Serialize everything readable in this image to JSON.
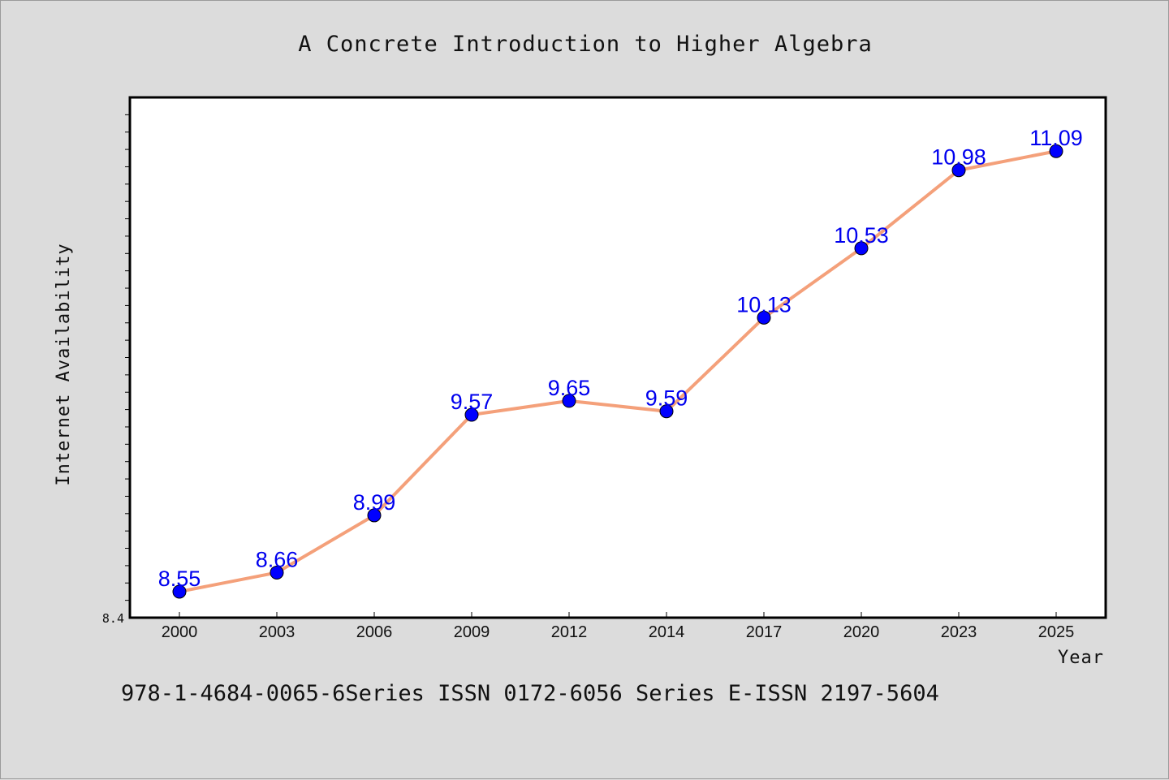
{
  "chart_data": {
    "type": "line",
    "title": "A Concrete Introduction to Higher Algebra",
    "xlabel": "Year",
    "ylabel": "Internet Availability",
    "categories": [
      "2000",
      "2003",
      "2006",
      "2009",
      "2012",
      "2014",
      "2017",
      "2020",
      "2023",
      "2025"
    ],
    "series": [
      {
        "values": [
          8.55,
          8.66,
          8.99,
          9.57,
          9.65,
          9.59,
          10.13,
          10.53,
          10.98,
          11.09
        ]
      }
    ],
    "yticks_labeled": [
      "8.4"
    ],
    "ylim": [
      8.4,
      11.4
    ],
    "grid": false,
    "line_color": "#f4a07a",
    "marker_color": "#0000ff",
    "label_color": "#0000ee",
    "plot_background": "#ffffff",
    "page_background": "#dcdcdc"
  },
  "footer_text": "978-1-4684-0065-6Series ISSN 0172-6056 Series E-ISSN 2197-5604"
}
